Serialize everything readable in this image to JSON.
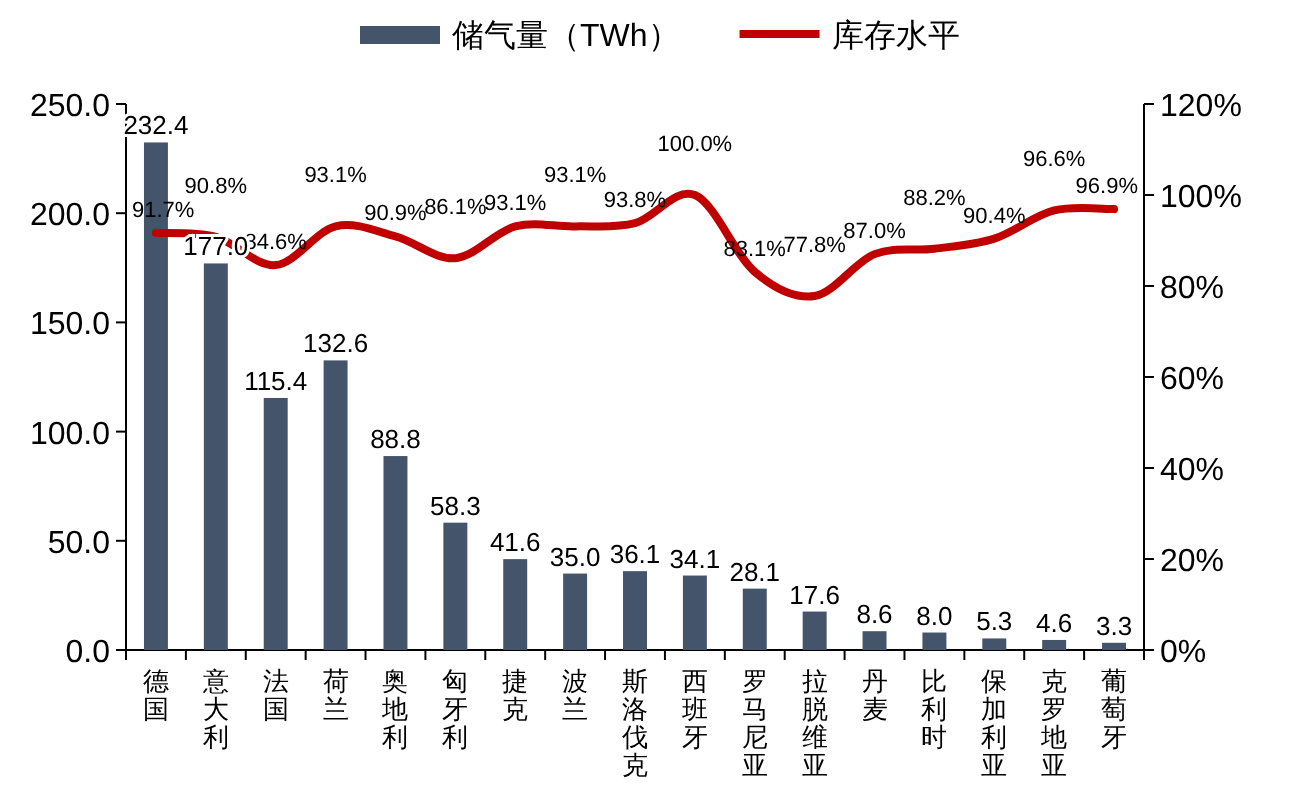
{
  "chart_data": {
    "type": "bar",
    "categories": [
      "德国",
      "意大利",
      "法国",
      "荷兰",
      "奥地利",
      "匈牙利",
      "捷克",
      "波兰",
      "斯洛伐克",
      "西班牙",
      "罗马尼亚",
      "拉脱维亚",
      "丹麦",
      "比利时",
      "保加利亚",
      "克罗地亚",
      "葡萄牙"
    ],
    "series": [
      {
        "name": "储气量（TWh）",
        "color": "#44546a",
        "values": [
          232.4,
          177.0,
          115.4,
          132.6,
          88.8,
          58.3,
          41.6,
          35.0,
          36.1,
          34.1,
          28.1,
          17.6,
          8.6,
          8.0,
          5.3,
          4.6,
          3.3
        ],
        "value_labels": [
          "232.4",
          "177.0",
          "115.4",
          "132.6",
          "88.8",
          "58.3",
          "41.6",
          "35.0",
          "36.1",
          "34.1",
          "28.1",
          "17.6",
          "8.6",
          "8.0",
          "5.3",
          "4.6",
          "3.3"
        ]
      },
      {
        "name": "库存水平",
        "type": "line",
        "axis": "y2",
        "color": "#c00000",
        "values": [
          91.7,
          90.8,
          84.6,
          93.1,
          90.9,
          86.1,
          93.1,
          93.1,
          93.8,
          100.0,
          83.1,
          77.8,
          87.0,
          88.2,
          90.4,
          96.6,
          96.9
        ],
        "value_labels": [
          "91.7%",
          "90.8%",
          "84.6%",
          "93.1%",
          "90.9%",
          "86.1%",
          "93.1%",
          "93.1%",
          "93.8%",
          "100.0%",
          "83.1%",
          "77.8%",
          "87.0%",
          "88.2%",
          "90.4%",
          "96.6%",
          "96.9%"
        ]
      }
    ],
    "ylim": [
      0,
      250
    ],
    "yticks": [
      {
        "value": 0,
        "label": "0.0"
      },
      {
        "value": 50,
        "label": "50.0"
      },
      {
        "value": 100,
        "label": "100.0"
      },
      {
        "value": 150,
        "label": "150.0"
      },
      {
        "value": 200,
        "label": "200.0"
      },
      {
        "value": 250,
        "label": "250.0"
      }
    ],
    "y2lim": [
      0,
      120
    ],
    "y2ticks": [
      {
        "value": 0,
        "label": "0%"
      },
      {
        "value": 20,
        "label": "20%"
      },
      {
        "value": 40,
        "label": "40%"
      },
      {
        "value": 60,
        "label": "60%"
      },
      {
        "value": 80,
        "label": "80%"
      },
      {
        "value": 100,
        "label": "100%"
      },
      {
        "value": 120,
        "label": "120%"
      }
    ],
    "legend": "top"
  }
}
